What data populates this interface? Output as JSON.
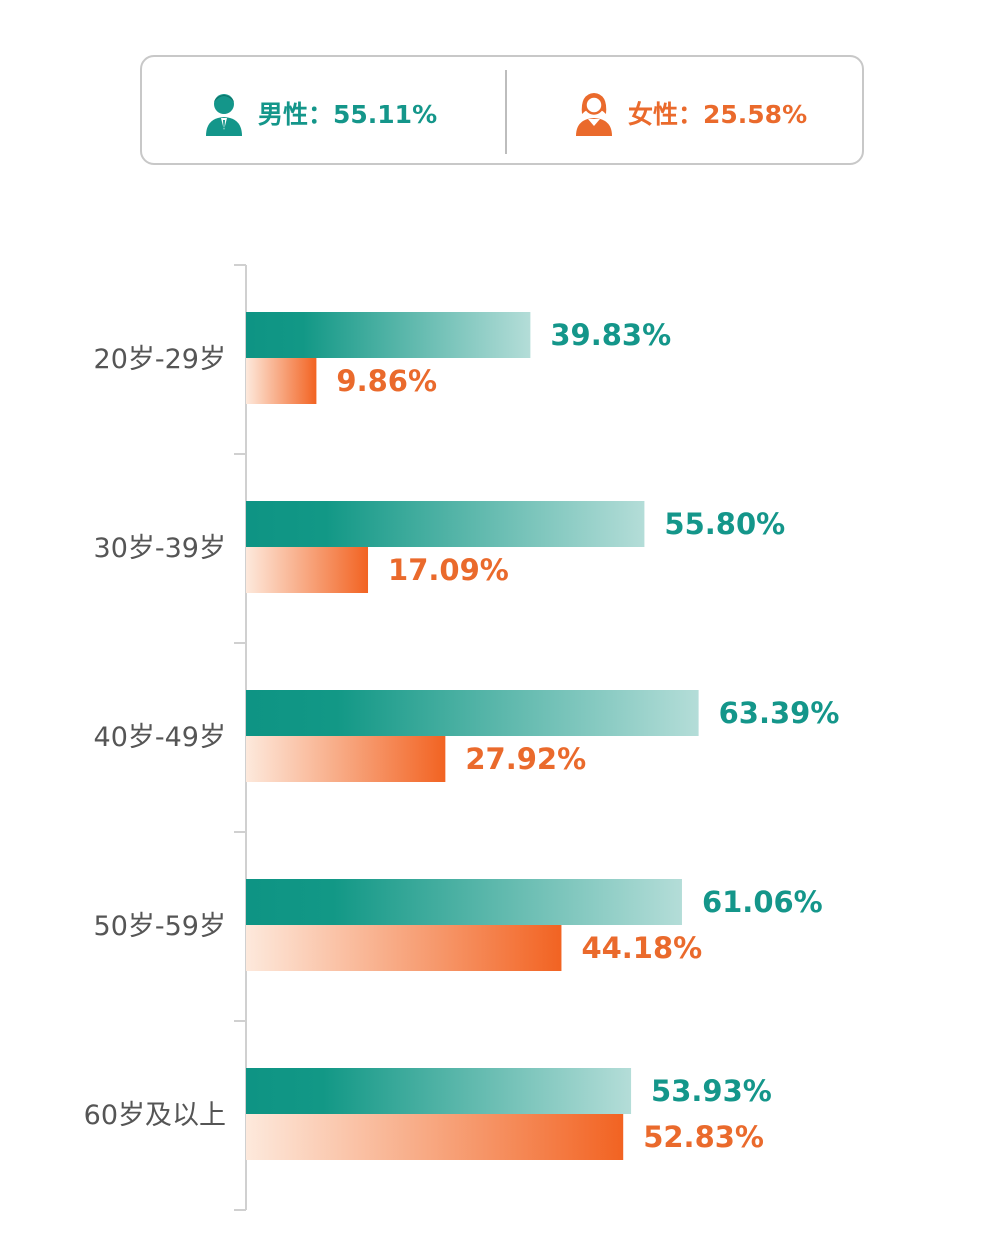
{
  "legend": {
    "male": {
      "label": "男性：55.11%",
      "icon": "male-person-icon",
      "color": "#14968a"
    },
    "female": {
      "label": "女性：25.58%",
      "icon": "female-person-icon",
      "color": "#ea6a2c"
    }
  },
  "chart_data": {
    "type": "bar",
    "orientation": "horizontal",
    "categories": [
      "20岁-29岁",
      "30岁-39岁",
      "40岁-49岁",
      "50岁-59岁",
      "60岁及以上"
    ],
    "series": [
      {
        "values": [
          39.83,
          55.8,
          63.39,
          61.06,
          53.93
        ],
        "labels": [
          "39.83%",
          "55.80%",
          "63.39%",
          "61.06%",
          "53.93%"
        ],
        "color": "#14968a"
      },
      {
        "values": [
          9.86,
          17.09,
          27.92,
          44.18,
          52.83
        ],
        "labels": [
          "9.86%",
          "17.09%",
          "27.92%",
          "44.18%",
          "52.83%"
        ],
        "color": "#ea6a2c"
      }
    ],
    "xlim": [
      0,
      100
    ],
    "grid": false,
    "legend_position": "top"
  }
}
